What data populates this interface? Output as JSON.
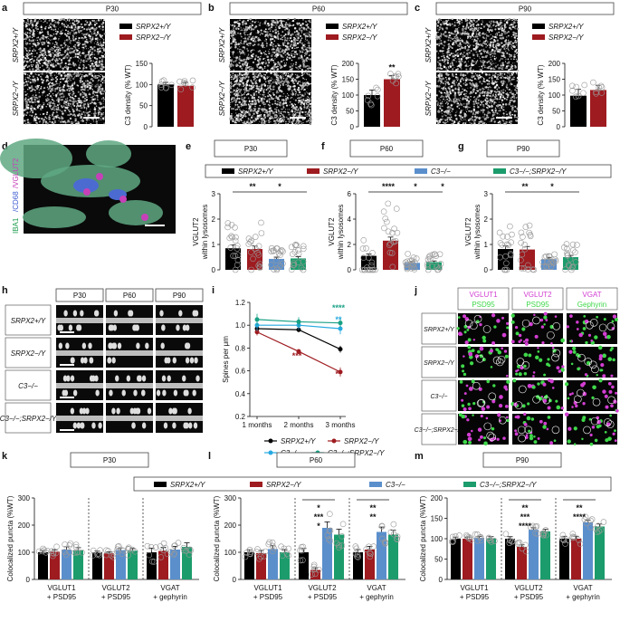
{
  "colors": {
    "wt": "#000000",
    "ko": "#9e1b20",
    "c3": "#5b8fcc",
    "dko": "#1c9c6c",
    "line_c3": "#27a9e1",
    "line_dko": "#19a186",
    "vglut": "#d23ed2",
    "psd": "#3fd84a"
  },
  "genotypes": {
    "wt": "SRPX2+/Y",
    "ko": "SRPX2−/Y",
    "c3": "C3−/−",
    "dko": "C3−/−;SRPX2−/Y"
  },
  "panels": {
    "a": {
      "letter": "a",
      "age": "P30",
      "row_top": "SRPX2+/Y",
      "row_bottom": "SRPX2−/Y",
      "ylabel": "C3 density (% WT)"
    },
    "b": {
      "letter": "b",
      "age": "P60",
      "row_top": "SRPX2+/Y",
      "row_bottom": "SRPX2−/Y",
      "ylabel": "C3 density (% WT)",
      "stars": "**"
    },
    "c": {
      "letter": "c",
      "age": "P90",
      "row_top": "SRPX2+/Y",
      "row_bottom": "SRPX2−/Y",
      "ylabel": "C3 density (% WT)"
    },
    "d": {
      "letter": "d",
      "label_a": "IBA1",
      "label_b": "CD68",
      "label_c": "VGLUT2"
    },
    "e": {
      "letter": "e",
      "age": "P30"
    },
    "f": {
      "letter": "f",
      "age": "P60"
    },
    "g": {
      "letter": "g",
      "age": "P90"
    },
    "h": {
      "letter": "h",
      "ages": [
        "P30",
        "P60",
        "P90"
      ],
      "rows": [
        "SRPX2+/Y",
        "SRPX2−/Y",
        "C3−/−",
        "C3−/−;SRPX2−/Y"
      ]
    },
    "i": {
      "letter": "i",
      "ylabel": "Spines per μm"
    },
    "j": {
      "letter": "j",
      "col1a": "VGLUT1",
      "col1b": "PSD95",
      "col2a": "VGLUT2",
      "col2b": "PSD95",
      "col3a": "VGAT",
      "col3b": "Gephyrin",
      "rows": [
        "SRPX2+/Y",
        "SRPX2−/Y",
        "C3−/−",
        "C3−/−;SRPX2−/Y"
      ]
    },
    "k": {
      "letter": "k",
      "age": "P30"
    },
    "l": {
      "letter": "l",
      "age": "P60"
    },
    "m": {
      "letter": "m",
      "age": "P90"
    }
  },
  "chart_data": [
    {
      "type": "bar",
      "panel": "a",
      "title": "P30",
      "ylabel": "C3 density (% WT)",
      "ylim": [
        0,
        150
      ],
      "yticks": [
        "0",
        "50",
        "100",
        "150"
      ],
      "series": [
        {
          "name": "SRPX2+/Y",
          "values": [
            100
          ],
          "error": [
            5
          ]
        },
        {
          "name": "SRPX2−/Y",
          "values": [
            97
          ],
          "error": [
            8
          ]
        }
      ]
    },
    {
      "type": "bar",
      "panel": "b",
      "title": "P60",
      "ylabel": "C3 density (% WT)",
      "ylim": [
        0,
        200
      ],
      "yticks": [
        "0",
        "50",
        "100",
        "150",
        "200"
      ],
      "series": [
        {
          "name": "SRPX2+/Y",
          "values": [
            100
          ],
          "error": [
            16
          ]
        },
        {
          "name": "SRPX2−/Y",
          "values": [
            150
          ],
          "error": [
            12
          ]
        }
      ],
      "annotations": [
        "**"
      ]
    },
    {
      "type": "bar",
      "panel": "c",
      "title": "P90",
      "ylabel": "C3 density (% WT)",
      "ylim": [
        0,
        200
      ],
      "yticks": [
        "0",
        "50",
        "100",
        "150",
        "200"
      ],
      "series": [
        {
          "name": "SRPX2+/Y",
          "values": [
            98
          ],
          "error": [
            20
          ]
        },
        {
          "name": "SRPX2−/Y",
          "values": [
            116
          ],
          "error": [
            15
          ]
        }
      ]
    },
    {
      "type": "bar",
      "panel": "e",
      "title": "P30",
      "ylabel": "VGLUT2 within lysosomes",
      "ylim": [
        0,
        3
      ],
      "yticks": [
        "0",
        "1",
        "2",
        "3"
      ],
      "categories": [
        "SRPX2+/Y",
        "SRPX2−/Y",
        "C3−/−",
        "C3−/−;SRPX2−/Y"
      ],
      "values": [
        0.85,
        0.82,
        0.43,
        0.45
      ],
      "error": [
        0.13,
        0.12,
        0.07,
        0.07
      ],
      "annotations": [
        "**",
        "*"
      ]
    },
    {
      "type": "bar",
      "panel": "f",
      "title": "P60",
      "ylabel": "VGLUT2 within lysosomes",
      "ylim": [
        0,
        6
      ],
      "yticks": [
        "0",
        "2",
        "4",
        "6"
      ],
      "categories": [
        "SRPX2+/Y",
        "SRPX2−/Y",
        "C3−/−",
        "C3−/−;SRPX2−/Y"
      ],
      "values": [
        1.1,
        2.3,
        0.55,
        0.6
      ],
      "error": [
        0.15,
        0.28,
        0.1,
        0.1
      ],
      "annotations": [
        "****",
        "*",
        "*"
      ]
    },
    {
      "type": "bar",
      "panel": "g",
      "title": "P90",
      "ylabel": "VGLUT2 within lysosomes",
      "ylim": [
        0,
        3
      ],
      "yticks": [
        "0",
        "1",
        "2",
        "3"
      ],
      "categories": [
        "SRPX2+/Y",
        "SRPX2−/Y",
        "C3−/−",
        "C3−/−;SRPX2−/Y"
      ],
      "values": [
        0.82,
        0.8,
        0.42,
        0.5
      ],
      "error": [
        0.12,
        0.12,
        0.07,
        0.07
      ],
      "annotations": [
        "**",
        "*"
      ]
    },
    {
      "type": "line",
      "panel": "i",
      "ylabel": "Spines per μm",
      "ylim": [
        0.2,
        1.2
      ],
      "yticks": [
        "0.2",
        "0.4",
        "0.6",
        "0.8",
        "1.0",
        "1.2"
      ],
      "x": [
        "1 months",
        "2 months",
        "3 months"
      ],
      "series": [
        {
          "name": "SRPX2+/Y",
          "values": [
            0.97,
            0.96,
            0.79
          ],
          "error": [
            0.03,
            0.02,
            0.03
          ]
        },
        {
          "name": "SRPX2−/Y",
          "values": [
            0.94,
            0.77,
            0.59
          ],
          "error": [
            0.03,
            0.02,
            0.04
          ]
        },
        {
          "name": "C3−/−",
          "values": [
            1.0,
            1.0,
            0.97
          ],
          "error": [
            0.05,
            0.04,
            0.05
          ]
        },
        {
          "name": "C3−/−;SRPX2−/Y",
          "values": [
            1.05,
            1.03,
            1.02
          ],
          "error": [
            0.05,
            0.04,
            0.04
          ]
        }
      ],
      "annotations": [
        "***",
        "****",
        "**",
        "**"
      ]
    },
    {
      "type": "bar",
      "panel": "k",
      "title": "P30",
      "ylabel": "Colocalized puncta (%WT)",
      "ylim": [
        0,
        300
      ],
      "yticks": [
        "0",
        "100",
        "200",
        "300"
      ],
      "categories": [
        "VGLUT1 + PSD95",
        "VGLUT2 + PSD95",
        "VGAT + gephyrin"
      ],
      "series": [
        {
          "name": "SRPX2+/Y",
          "values": [
            100,
            100,
            100
          ],
          "error": [
            6,
            5,
            15
          ]
        },
        {
          "name": "SRPX2−/Y",
          "values": [
            102,
            96,
            105
          ],
          "error": [
            8,
            6,
            13
          ]
        },
        {
          "name": "C3−/−",
          "values": [
            110,
            108,
            110
          ],
          "error": [
            10,
            8,
            12
          ]
        },
        {
          "name": "C3−/−;SRPX2−/Y",
          "values": [
            107,
            106,
            120
          ],
          "error": [
            10,
            8,
            15
          ]
        }
      ]
    },
    {
      "type": "bar",
      "panel": "l",
      "title": "P60",
      "ylabel": "Colocalized puncta (%WT)",
      "ylim": [
        0,
        300
      ],
      "yticks": [
        "0",
        "100",
        "200",
        "300"
      ],
      "categories": [
        "VGLUT1 + PSD95",
        "VGLUT2 + PSD95",
        "VGAT + gephyrin"
      ],
      "series": [
        {
          "name": "SRPX2+/Y",
          "values": [
            100,
            100,
            100
          ],
          "error": [
            10,
            14,
            10
          ]
        },
        {
          "name": "SRPX2−/Y",
          "values": [
            97,
            35,
            110
          ],
          "error": [
            10,
            8,
            12
          ]
        },
        {
          "name": "C3−/−",
          "values": [
            112,
            190,
            175
          ],
          "error": [
            12,
            22,
            18
          ]
        },
        {
          "name": "C3−/−;SRPX2−/Y",
          "values": [
            100,
            165,
            165
          ],
          "error": [
            10,
            20,
            16
          ]
        }
      ],
      "annotations": [
        "*",
        "***",
        "*",
        "**",
        "**"
      ]
    },
    {
      "type": "bar",
      "panel": "m",
      "title": "P90",
      "ylabel": "Colocalized puncta (%WT)",
      "ylim": [
        0,
        200
      ],
      "yticks": [
        "0",
        "50",
        "100",
        "150",
        "200"
      ],
      "categories": [
        "VGLUT1 + PSD95",
        "VGLUT2 + PSD95",
        "VGAT + gephyrin"
      ],
      "series": [
        {
          "name": "SRPX2+/Y",
          "values": [
            100,
            100,
            100
          ],
          "error": [
            4,
            5,
            6
          ]
        },
        {
          "name": "SRPX2−/Y",
          "values": [
            100,
            80,
            100
          ],
          "error": [
            4,
            5,
            6
          ]
        },
        {
          "name": "C3−/−",
          "values": [
            102,
            122,
            140
          ],
          "error": [
            4,
            5,
            6
          ]
        },
        {
          "name": "C3−/−;SRPX2−/Y",
          "values": [
            101,
            118,
            130
          ],
          "error": [
            4,
            5,
            6
          ]
        }
      ],
      "annotations": [
        "**",
        "***",
        "****",
        "**",
        "****"
      ]
    }
  ]
}
